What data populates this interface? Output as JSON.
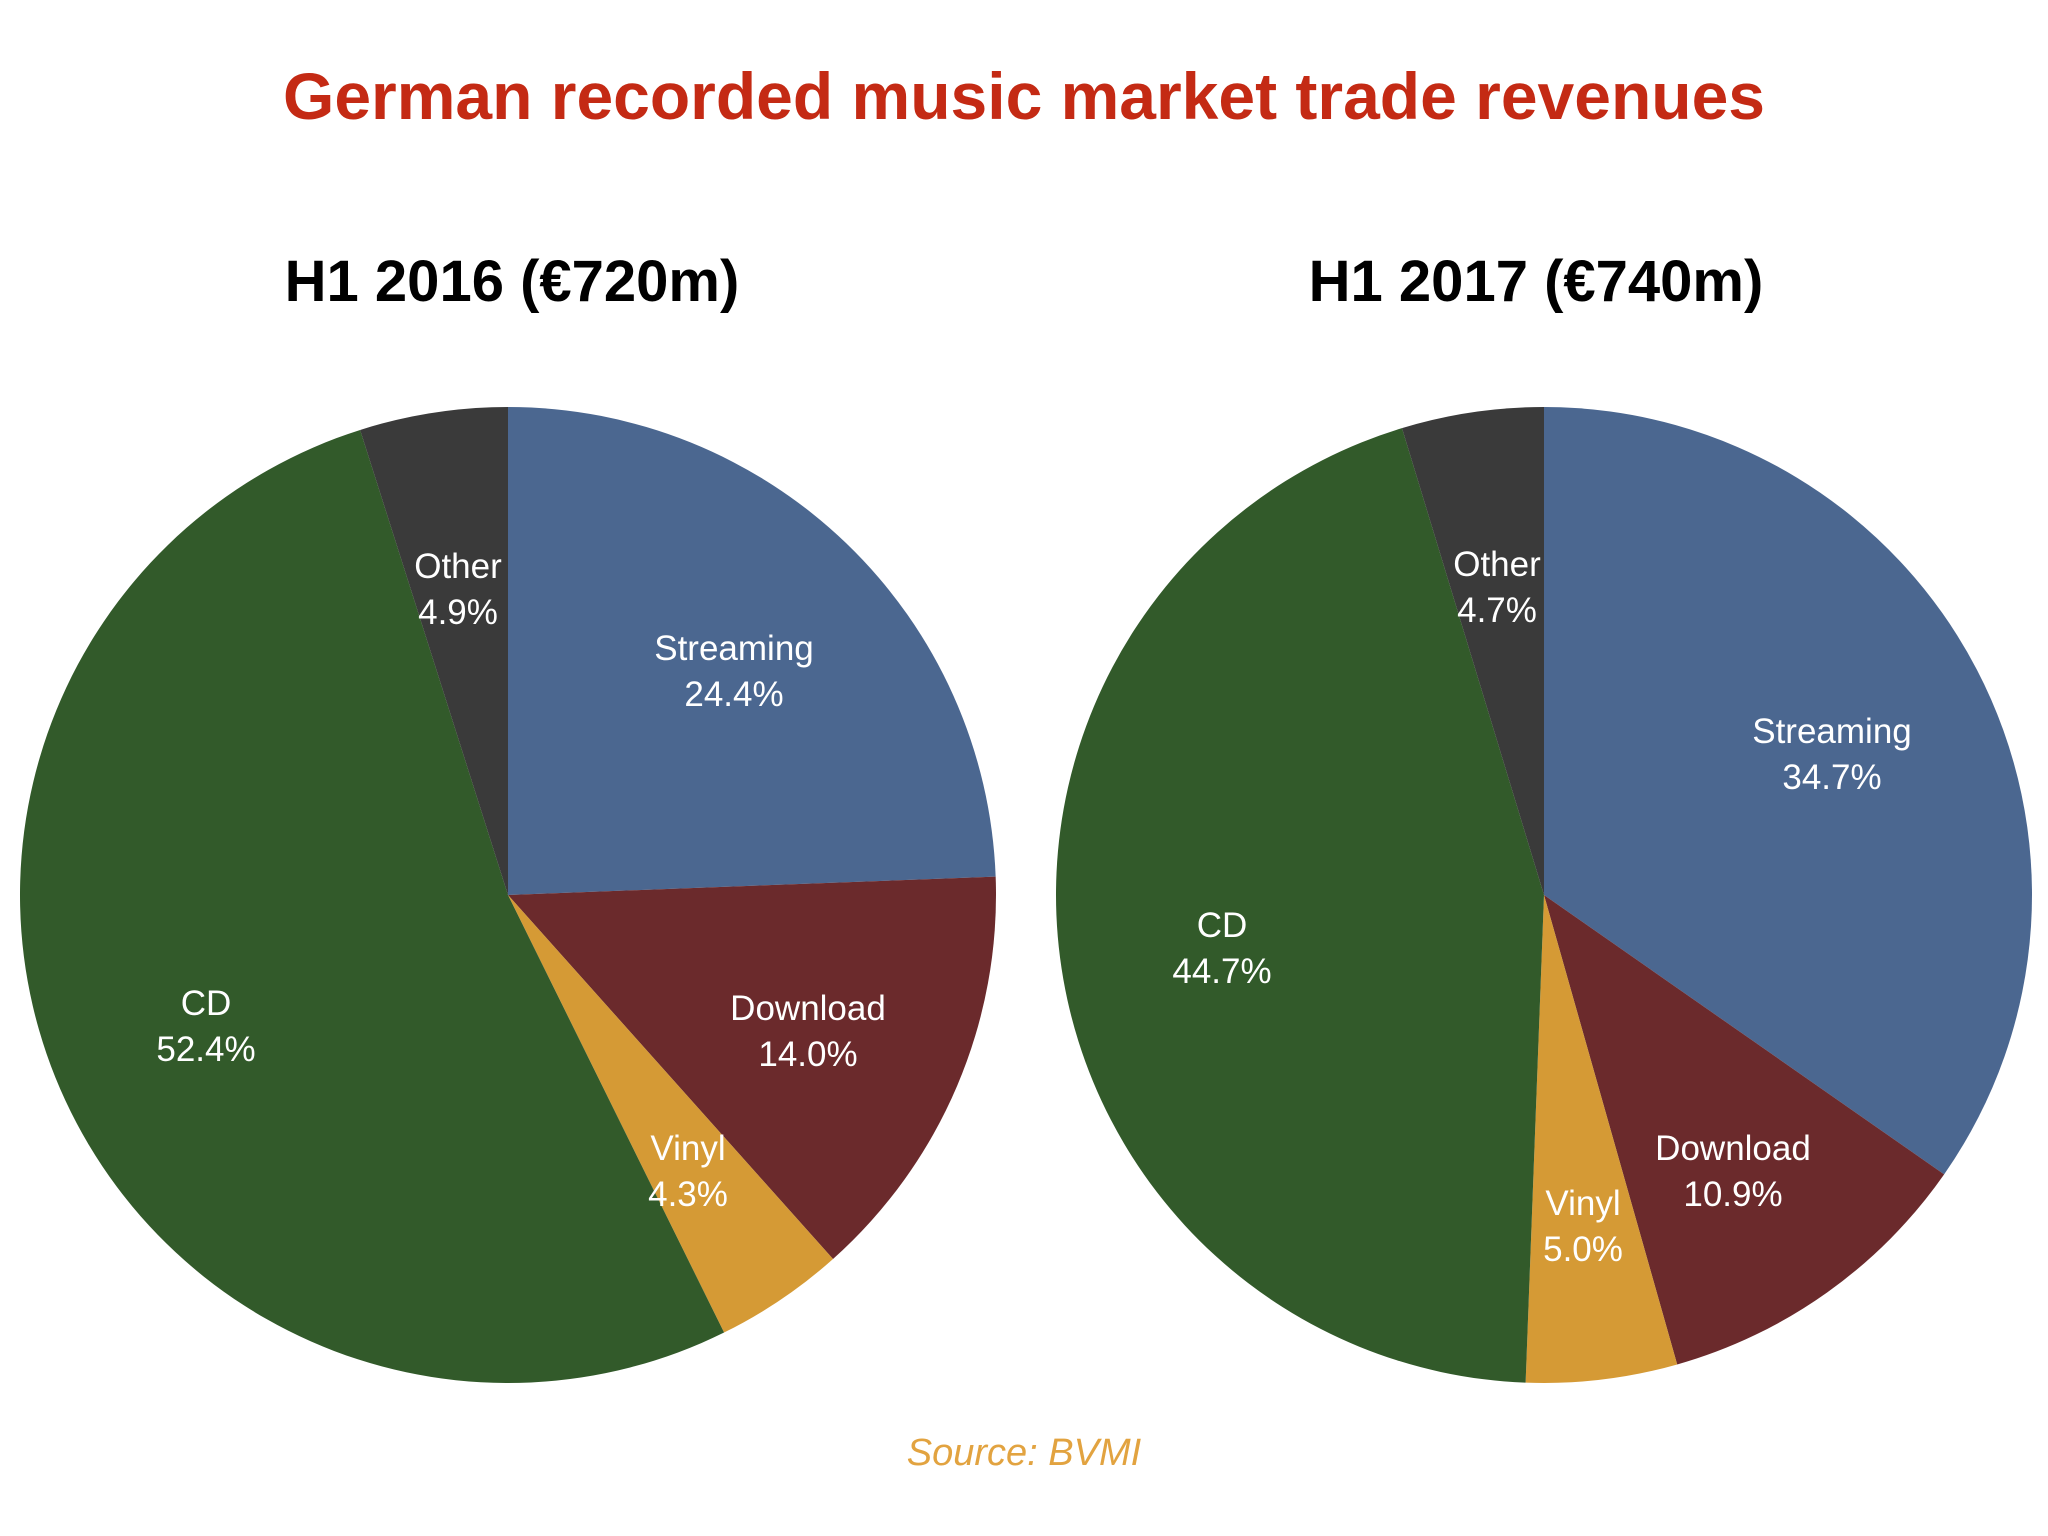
{
  "title": "German recorded music market trade revenues",
  "source": "Source: BVMI",
  "colors": {
    "title": "#c42a14",
    "source": "#e2a340",
    "Streaming": "#4b6790",
    "Download": "#6b2a2c",
    "Vinyl": "#d59a35",
    "CD": "#325a2a",
    "Other": "#3a3a3a"
  },
  "chart_data": [
    {
      "type": "pie",
      "title": "H1 2016 (€720m)",
      "categories": [
        "Streaming",
        "Download",
        "Vinyl",
        "CD",
        "Other"
      ],
      "values": [
        24.4,
        14.0,
        4.3,
        52.4,
        4.9
      ],
      "labels": [
        "24.4%",
        "14.0%",
        "4.3%",
        "52.4%",
        "4.9%"
      ]
    },
    {
      "type": "pie",
      "title": "H1 2017 (€740m)",
      "categories": [
        "Streaming",
        "Download",
        "Vinyl",
        "CD",
        "Other"
      ],
      "values": [
        34.7,
        10.9,
        5.0,
        44.7,
        4.7
      ],
      "labels": [
        "34.7%",
        "10.9%",
        "5.0%",
        "44.7%",
        "4.7%"
      ]
    }
  ]
}
